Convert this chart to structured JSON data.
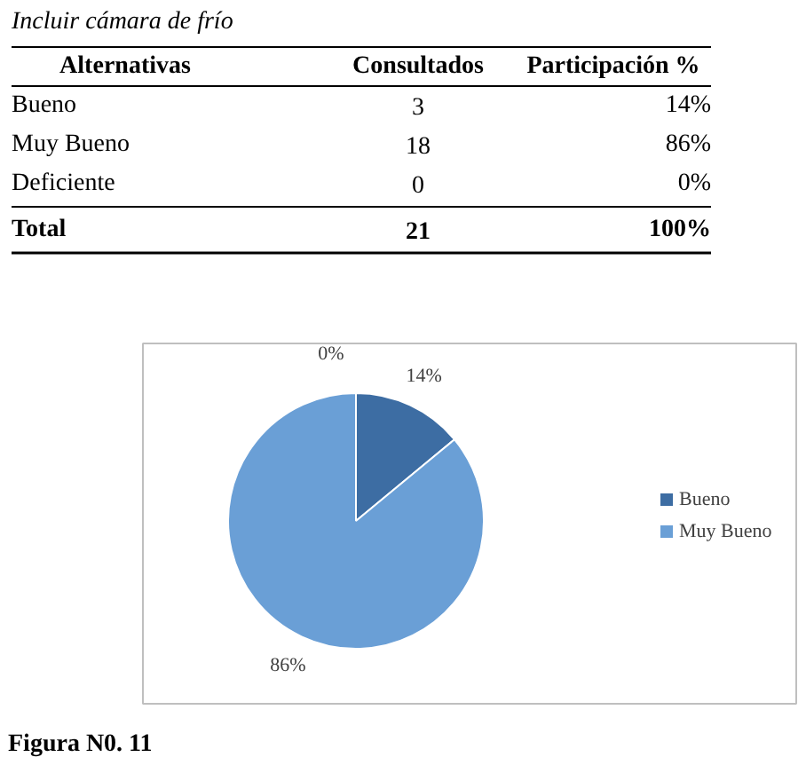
{
  "chart_data": [
    {
      "type": "other",
      "title": "Incluir cámara de frío",
      "annotations": [
        "Alternativas",
        "Consultados",
        "Participación %",
        "Bueno",
        "3",
        "14%",
        "Muy Bueno",
        "18",
        "86%",
        "Deficiente",
        "0",
        "0%",
        "Total",
        "21",
        "100%"
      ]
    },
    {
      "type": "pie",
      "categories": [
        "Bueno",
        "Muy Bueno",
        null
      ],
      "values": [
        14,
        86,
        0
      ],
      "colors": [
        "#3d6da3",
        "#6a9fd6",
        "#a5a5a5"
      ],
      "value_labels": [
        "14%",
        "86%",
        "0%"
      ],
      "legend": "right",
      "annotations": [
        "Figura N0. 11"
      ]
    }
  ]
}
